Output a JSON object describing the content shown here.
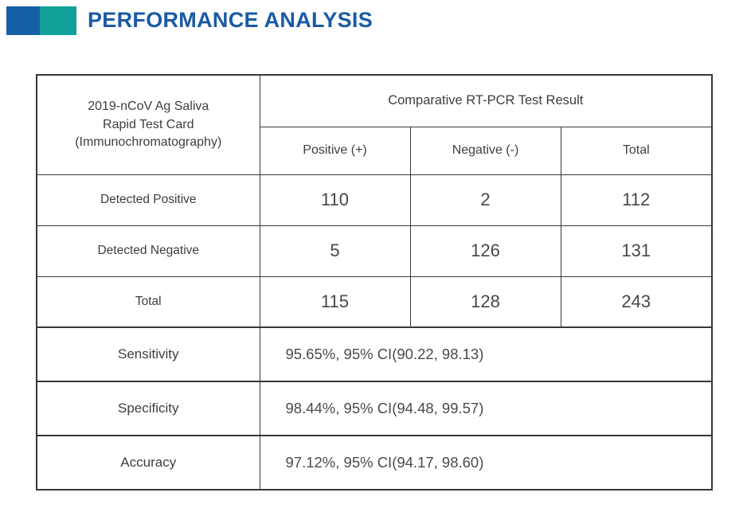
{
  "header": {
    "title": "PERFORMANCE ANALYSIS"
  },
  "colors": {
    "title_blue": "#1A5AA6",
    "square_blue": "#1560A5",
    "square_teal": "#12A19A",
    "table_border": "#383838",
    "text_dark": "#3E3E3E"
  },
  "table": {
    "corner_lines": [
      "2019-nCoV Ag Saliva",
      "Rapid Test Card",
      "(Immunochromatography)"
    ],
    "group_header": "Comparative RT-PCR Test Result",
    "col_headers": [
      "Positive (+)",
      "Negative (-)",
      "Total"
    ],
    "rows": [
      {
        "label": "Detected Positive",
        "values": [
          "110",
          "2",
          "112"
        ]
      },
      {
        "label": "Detected Negative",
        "values": [
          "5",
          "126",
          "131"
        ]
      },
      {
        "label": "Total",
        "values": [
          "115",
          "128",
          "243"
        ]
      }
    ],
    "stats": [
      {
        "label": "Sensitivity",
        "value": "95.65%, 95% CI(90.22, 98.13)"
      },
      {
        "label": "Specificity",
        "value": "98.44%, 95% CI(94.48, 99.57)"
      },
      {
        "label": "Accuracy",
        "value": "97.12%, 95% CI(94.17, 98.60)"
      }
    ]
  },
  "chart_data": {
    "type": "table",
    "title": "Performance Analysis — 2019-nCoV Ag Saliva Rapid Test Card vs Comparative RT-PCR",
    "columns": [
      "2019-nCoV Ag Saliva Rapid Test Card (Immunochromatography)",
      "Positive (+)",
      "Negative (-)",
      "Total"
    ],
    "rows": [
      [
        "Detected Positive",
        110,
        2,
        112
      ],
      [
        "Detected Negative",
        5,
        126,
        131
      ],
      [
        "Total",
        115,
        128,
        243
      ]
    ],
    "statistics": {
      "sensitivity": "95.65%, 95% CI(90.22, 98.13)",
      "specificity": "98.44%, 95% CI(94.48, 99.57)",
      "accuracy": "97.12%, 95% CI(94.17, 98.60)"
    }
  }
}
